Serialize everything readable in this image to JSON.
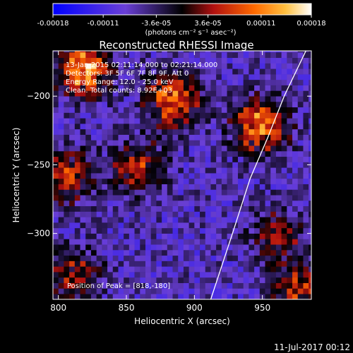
{
  "colorbar": {
    "tick_labels": [
      "-0.00018",
      "-0.00011",
      "-3.6e-05",
      "3.6e-05",
      "0.00011",
      "0.00018"
    ],
    "tick_values": [
      -0.00018,
      -0.00011,
      -3.6e-05,
      3.6e-05,
      0.00011,
      0.00018
    ],
    "range": [
      -0.00018,
      0.00018
    ],
    "unit_label": "(photons cm⁻² s⁻¹ asec⁻²)",
    "colors": [
      "#0000ff",
      "#6a3fd6",
      "#000000",
      "#b01010",
      "#ff6a00",
      "#ffc040",
      "#ffffff"
    ]
  },
  "chart_data": {
    "type": "heatmap",
    "title": "Reconstructed RHESSI Image",
    "xlabel": "Heliocentric X (arcsec)",
    "ylabel": "Heliocentric Y (arcsec)",
    "xlim": [
      796,
      986
    ],
    "ylim": [
      -348,
      -167
    ],
    "x_ticks": [
      800,
      850,
      900,
      950
    ],
    "x_tick_labels": [
      "800",
      "850",
      "900",
      "950"
    ],
    "y_ticks": [
      -200,
      -250,
      -300
    ],
    "y_tick_labels": [
      "−200",
      "−250",
      "−300"
    ],
    "limb_curve": [
      [
        912,
        -348
      ],
      [
        928,
        -300
      ],
      [
        941,
        -260
      ],
      [
        954,
        -230
      ],
      [
        966,
        -200
      ],
      [
        982,
        -167
      ]
    ],
    "hot_regions": [
      {
        "x": 818,
        "y": -180,
        "value": 0.00018
      },
      {
        "x": 885,
        "y": -203,
        "value": 0.00016
      },
      {
        "x": 948,
        "y": -222,
        "value": 0.00017
      },
      {
        "x": 806,
        "y": -258,
        "value": 0.00012
      },
      {
        "x": 858,
        "y": -252,
        "value": 0.00011
      },
      {
        "x": 812,
        "y": -330,
        "value": 0.0001
      },
      {
        "x": 962,
        "y": -302,
        "value": 9e-05
      },
      {
        "x": 978,
        "y": -342,
        "value": 0.00012
      }
    ],
    "annotations": [
      "13-Jan-2015 02:11:14.000 to 02:21:14.000",
      "Detectors: 3F 5F 6F 7F 8F 9F, Att 0",
      "Energy Range: 12.0 - 25.0 keV",
      "Clean.  Total counts: 8.92E+03"
    ],
    "peak_label": "Position of Peak = [818,-180]"
  },
  "footer": {
    "date": "11-Jul-2017 00:12"
  }
}
